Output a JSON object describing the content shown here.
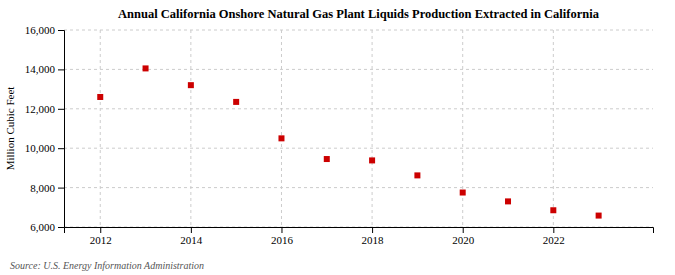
{
  "chart_data": {
    "type": "scatter",
    "title": "Annual California Onshore Natural Gas Plant Liquids Production Extracted in California",
    "ylabel": "Million Cubic Feet",
    "annotations": [
      "Source: U.S. Energy Information Administration"
    ],
    "x": [
      2012,
      2013,
      2014,
      2015,
      2016,
      2017,
      2018,
      2019,
      2020,
      2021,
      2022,
      2023
    ],
    "values": [
      12600,
      14050,
      13200,
      12350,
      10500,
      9450,
      9380,
      8620,
      7750,
      7300,
      6850,
      6580
    ],
    "color": "#cc0000",
    "marker": "square",
    "xlim": [
      2011.2,
      2024.2
    ],
    "xticks": [
      2012,
      2014,
      2016,
      2018,
      2020,
      2022
    ],
    "ylim": [
      6000,
      16000
    ],
    "yticks": [
      {
        "value": 6000,
        "label": "6,000"
      },
      {
        "value": 8000,
        "label": "8,000"
      },
      {
        "value": 10000,
        "label": "10,000"
      },
      {
        "value": 12000,
        "label": "12,000"
      },
      {
        "value": 14000,
        "label": "14,000"
      },
      {
        "value": 16000,
        "label": "16,000"
      }
    ],
    "grid": true
  }
}
